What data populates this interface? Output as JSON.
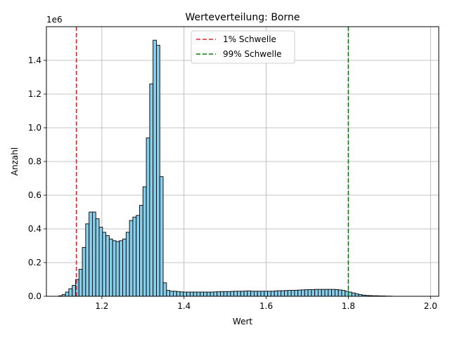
{
  "chart_data": {
    "type": "bar",
    "title": "Werteverteilung: Borne",
    "xlabel": "Wert",
    "ylabel": "Anzahl",
    "y_offset_label": "1e6",
    "xlim": [
      1.065,
      2.02
    ],
    "ylim": [
      0,
      1.6
    ],
    "xticks": [
      1.2,
      1.4,
      1.6,
      1.8,
      2.0
    ],
    "xtick_labels": [
      "1.2",
      "1.4",
      "1.6",
      "1.8",
      "2.0"
    ],
    "yticks": [
      0,
      0.2,
      0.4,
      0.6,
      0.8,
      1.0,
      1.2,
      1.4
    ],
    "ytick_labels": [
      "0.0",
      "0.2",
      "0.4",
      "0.6",
      "0.8",
      "1.0",
      "1.2",
      "1.4"
    ],
    "grid": true,
    "legend_position": "top-center",
    "bar_color": "#87ceeb",
    "bar_edge_color": "#000000",
    "bin_start": 1.095,
    "bin_width": 0.0082,
    "values": [
      0.003,
      0.01,
      0.025,
      0.045,
      0.065,
      0.1,
      0.16,
      0.29,
      0.43,
      0.5,
      0.5,
      0.46,
      0.41,
      0.38,
      0.36,
      0.34,
      0.33,
      0.325,
      0.33,
      0.34,
      0.38,
      0.45,
      0.47,
      0.48,
      0.54,
      0.65,
      0.94,
      1.26,
      1.52,
      1.49,
      0.71,
      0.08,
      0.035,
      0.03,
      0.03,
      0.028,
      0.026,
      0.025,
      0.025,
      0.025,
      0.025,
      0.025,
      0.025,
      0.025,
      0.025,
      0.025,
      0.026,
      0.027,
      0.028,
      0.028,
      0.028,
      0.029,
      0.03,
      0.03,
      0.03,
      0.031,
      0.032,
      0.03,
      0.03,
      0.03,
      0.03,
      0.03,
      0.03,
      0.03,
      0.032,
      0.033,
      0.033,
      0.034,
      0.035,
      0.035,
      0.036,
      0.037,
      0.038,
      0.039,
      0.04,
      0.04,
      0.041,
      0.041,
      0.041,
      0.041,
      0.041,
      0.041,
      0.04,
      0.038,
      0.035,
      0.03,
      0.025,
      0.02,
      0.015,
      0.01,
      0.007,
      0.005,
      0.004,
      0.003,
      0.003,
      0.002,
      0.002,
      0.001,
      0.001
    ],
    "vlines": [
      {
        "name": "1% Schwelle",
        "x": 1.138,
        "color": "#d62728"
      },
      {
        "name": "99% Schwelle",
        "x": 1.8,
        "color": "#008000"
      }
    ]
  }
}
